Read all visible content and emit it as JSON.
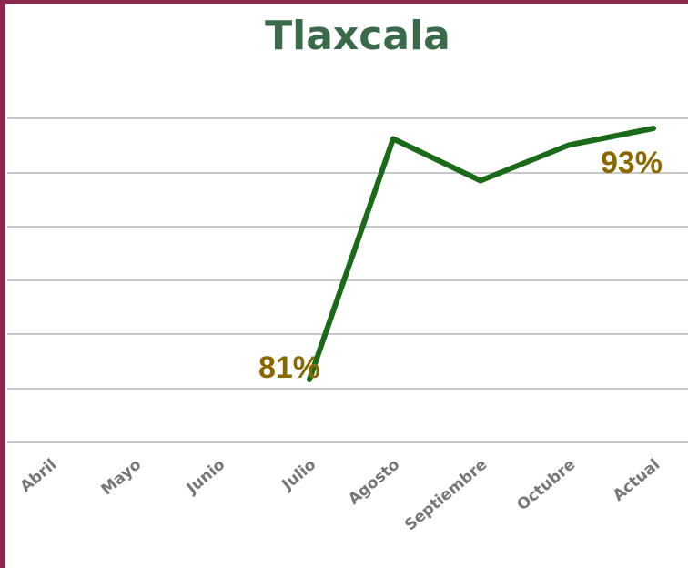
{
  "header": {
    "partial_text": "",
    "title": "Tlaxcala"
  },
  "colors": {
    "frame": "#8a2a4e",
    "title": "#3b6a4a",
    "line": "#1a6a1a",
    "labels": "#8a6a00",
    "grid": "#c8c8c8",
    "ticks": "#777777"
  },
  "chart_data": {
    "type": "line",
    "title": "Tlaxcala",
    "xlabel": "",
    "ylabel": "",
    "categories": [
      "Abril",
      "Mayo",
      "Junio",
      "Julio",
      "Agosto",
      "Septiembre",
      "Octubre",
      "Actual"
    ],
    "series": [
      {
        "values": [
          null,
          null,
          null,
          81,
          92.5,
          90.5,
          92.2,
          93
        ]
      }
    ],
    "data_labels": [
      {
        "category": "Julio",
        "text": "81%"
      },
      {
        "category": "Actual",
        "text": "93%"
      }
    ],
    "ylim": [
      78,
      96
    ],
    "grid": true,
    "legend": "none"
  }
}
